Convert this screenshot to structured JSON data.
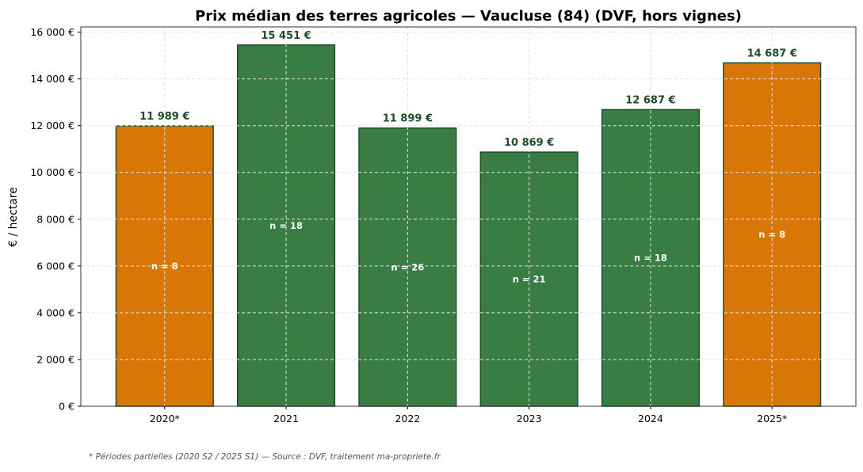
{
  "chart_data": {
    "type": "bar",
    "title": "Prix médian des terres agricoles — Vaucluse (84) (DVF, hors vignes)",
    "xlabel": "",
    "ylabel": "€ / hectare",
    "categories": [
      "2020*",
      "2021",
      "2022",
      "2023",
      "2024",
      "2025*"
    ],
    "values": [
      11989,
      15451,
      11899,
      10869,
      12687,
      14687
    ],
    "value_labels": [
      "11 989 €",
      "15 451 €",
      "11 899 €",
      "10 869 €",
      "12 687 €",
      "14 687 €"
    ],
    "count_labels": [
      "n = 8",
      "n = 18",
      "n = 26",
      "n = 21",
      "n = 18",
      "n = 8"
    ],
    "partial": [
      true,
      false,
      false,
      false,
      false,
      true
    ],
    "ylim": [
      0,
      16223
    ],
    "yticks": [
      0,
      2000,
      4000,
      6000,
      8000,
      10000,
      12000,
      14000,
      16000
    ],
    "ytick_labels": [
      "0 €",
      "2 000 €",
      "4 000 €",
      "6 000 €",
      "8 000 €",
      "10 000 €",
      "12 000 €",
      "14 000 €",
      "16 000 €"
    ],
    "grid": true,
    "colors": {
      "full": "#3a7d44",
      "partial": "#d97706",
      "edge": "#1f4d28",
      "value_label": "#1f4d28"
    },
    "footnote": "* Périodes partielles (2020 S2 / 2025 S1) — Source : DVF, traitement ma-propriete.fr"
  }
}
